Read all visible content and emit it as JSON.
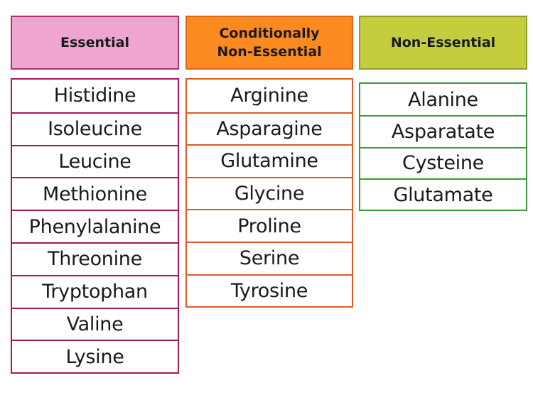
{
  "columns": [
    {
      "header": "Essential",
      "items": [
        "Histidine",
        "Isoleucine",
        "Leucine",
        "Methionine",
        "Phenylalanine",
        "Threonine",
        "Tryptophan",
        "Valine",
        "Lysine"
      ]
    },
    {
      "header": "Conditionally Non-Essential",
      "items": [
        "Arginine",
        "Asparagine",
        "Glutamine",
        "Glycine",
        "Proline",
        "Serine",
        "Tyrosine"
      ]
    },
    {
      "header": "Non-Essential",
      "items": [
        "Alanine",
        "Asparatate",
        "Cysteine",
        "Glutamate"
      ]
    }
  ]
}
